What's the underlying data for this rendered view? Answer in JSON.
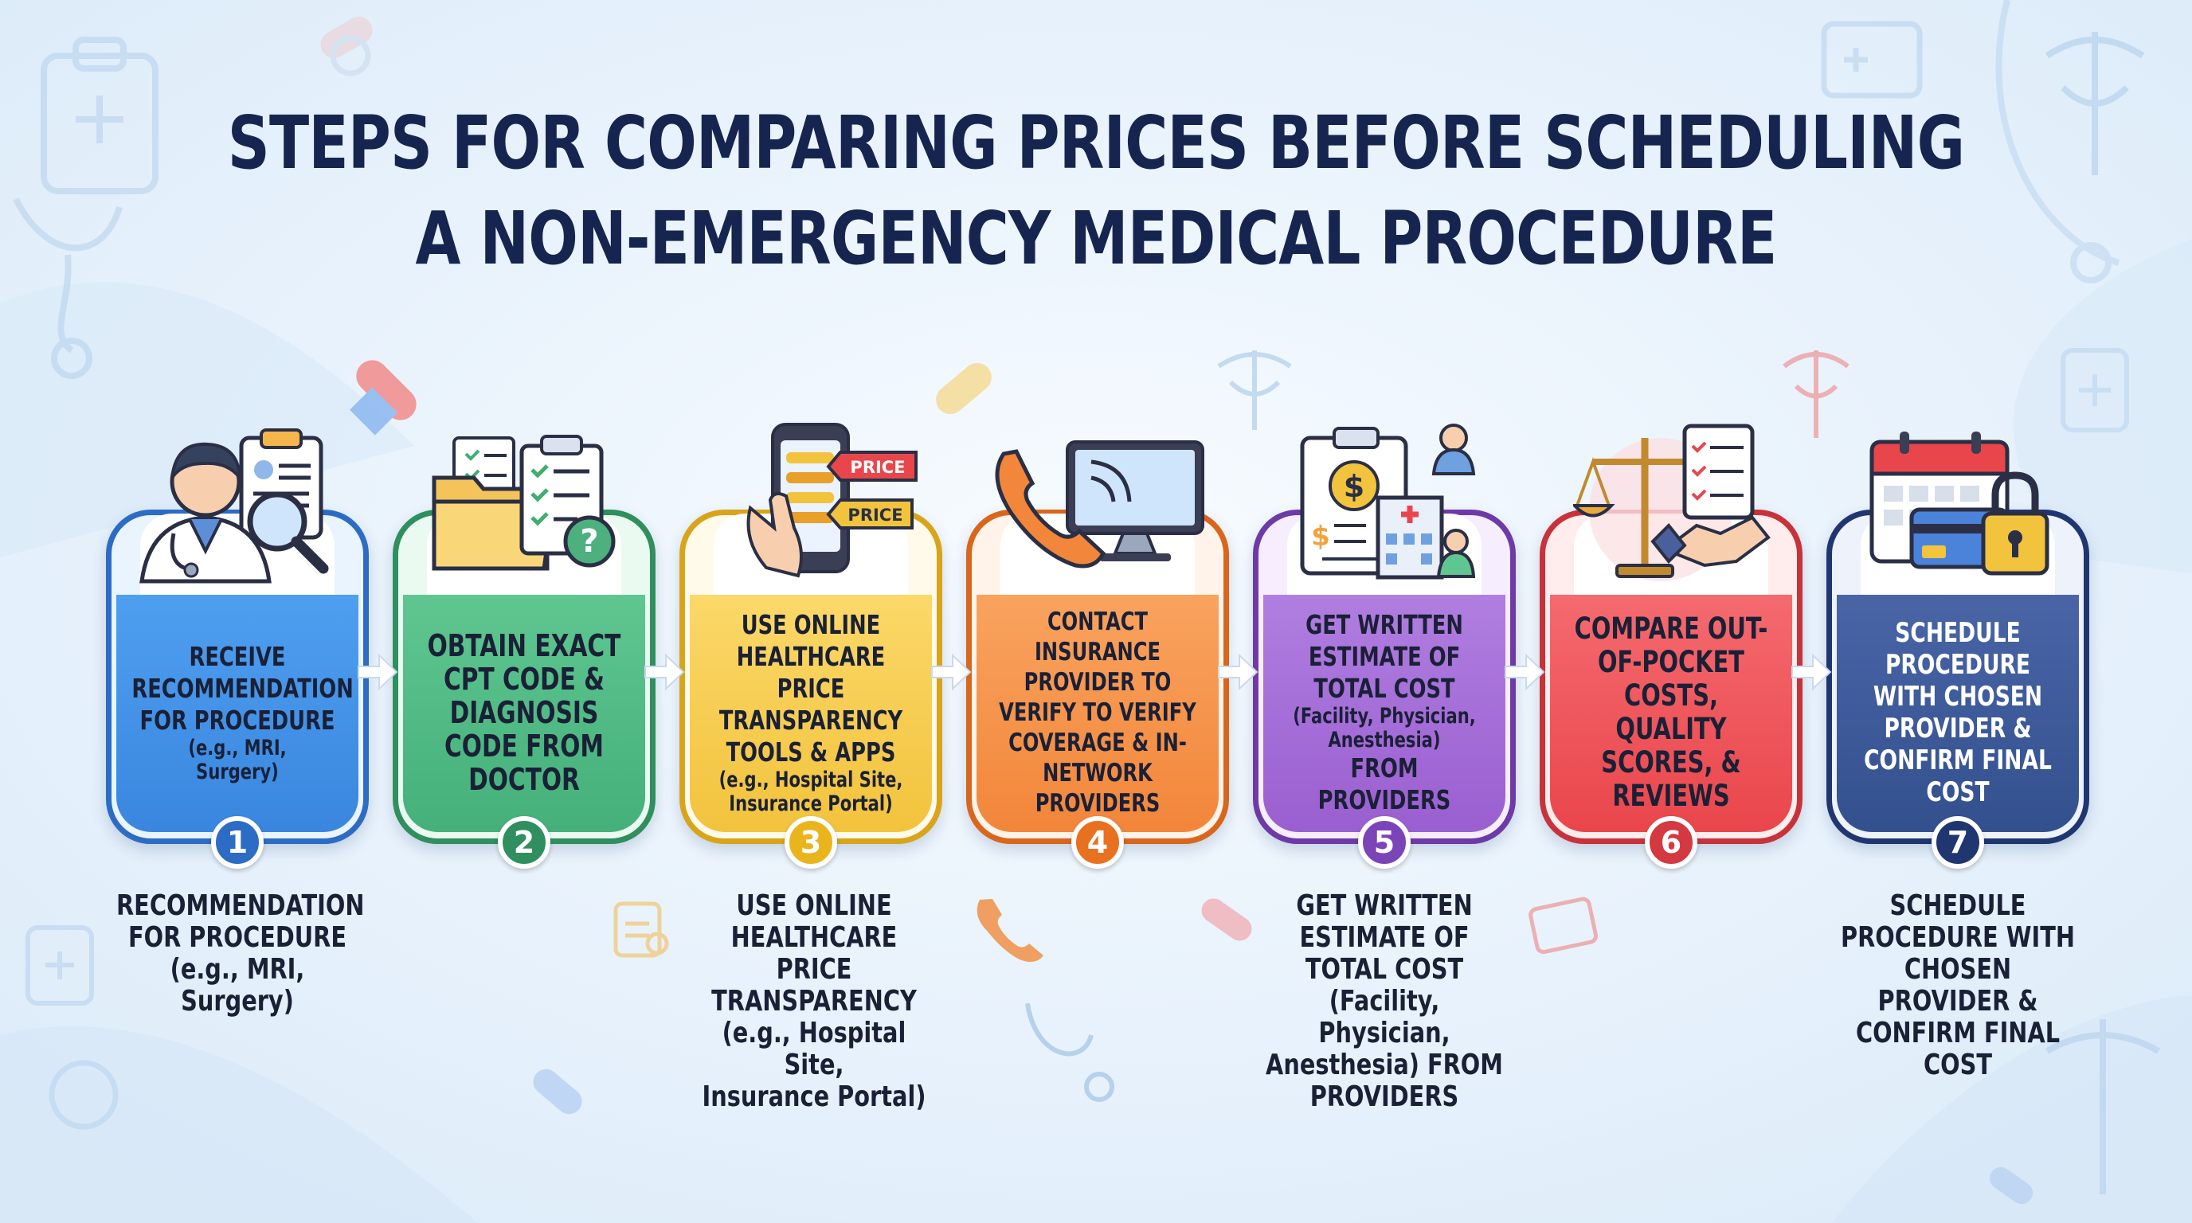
{
  "title": {
    "line1": "STEPS FOR COMPARING PRICES BEFORE SCHEDULING",
    "line2": "A NON-EMERGENCY MEDICAL PROCEDURE"
  },
  "colors": {
    "title": "#16254f",
    "step1": "#3a8ee6",
    "step2": "#3fb07a",
    "step3": "#f2c62e",
    "step4": "#f2893a",
    "step5": "#9a5ccf",
    "step6": "#ea4a4f",
    "step7": "#34508f"
  },
  "steps": [
    {
      "number": "1",
      "main": "RECEIVE RECOMMENDATION FOR PROCEDURE",
      "sub": "(e.g., MRI, Surgery)",
      "icon": "doctor-clipboard-magnifier-icon"
    },
    {
      "number": "2",
      "main": "OBTAIN EXACT CPT CODE & DIAGNOSIS CODE FROM DOCTOR",
      "sub": "",
      "icon": "folder-checklist-question-icon"
    },
    {
      "number": "3",
      "main": "USE ONLINE HEALTHCARE PRICE TRANSPARENCY TOOLS & APPS",
      "sub": "(e.g., Hospital Site, Insurance Portal)",
      "icon": "phone-price-tags-icon",
      "tag1": "PRICE",
      "tag2": "PRICE"
    },
    {
      "number": "4",
      "main": "CONTACT INSURANCE PROVIDER TO VERIFY TO VERIFY COVERAGE & IN-NETWORK PROVIDERS",
      "sub": "",
      "icon": "phone-computer-icon"
    },
    {
      "number": "5",
      "main": "GET WRITTEN ESTIMATE OF TOTAL COST",
      "sub": "(Facility, Physician, Anesthesia)",
      "main2": "FROM PROVIDERS",
      "icon": "estimate-hospital-icon"
    },
    {
      "number": "6",
      "main": "COMPARE OUT-OF-POCKET COSTS, QUALITY SCORES, & REVIEWS",
      "sub": "",
      "icon": "scales-handshake-icon"
    },
    {
      "number": "7",
      "main": "SCHEDULE PROCEDURE WITH CHOSEN PROVIDER & CONFIRM FINAL COST",
      "sub": "",
      "icon": "calendar-card-lock-icon"
    }
  ],
  "captions": {
    "c1": [
      "RECOMMENDATION",
      "FOR PROCEDURE",
      "(e.g., MRI, Surgery)"
    ],
    "c3": [
      "USE ONLINE",
      "HEALTHCARE PRICE",
      "TRANSPARENCY",
      "(e.g., Hospital Site,",
      "Insurance Portal)"
    ],
    "c5": [
      "GET WRITTEN",
      "ESTIMATE OF",
      "TOTAL COST",
      "(Facility, Physician,",
      "Anesthesia) FROM",
      "PROVIDERS"
    ],
    "c7": [
      "SCHEDULE",
      "PROCEDURE WITH",
      "CHOSEN PROVIDER &",
      "CONFIRM FINAL COST"
    ]
  }
}
